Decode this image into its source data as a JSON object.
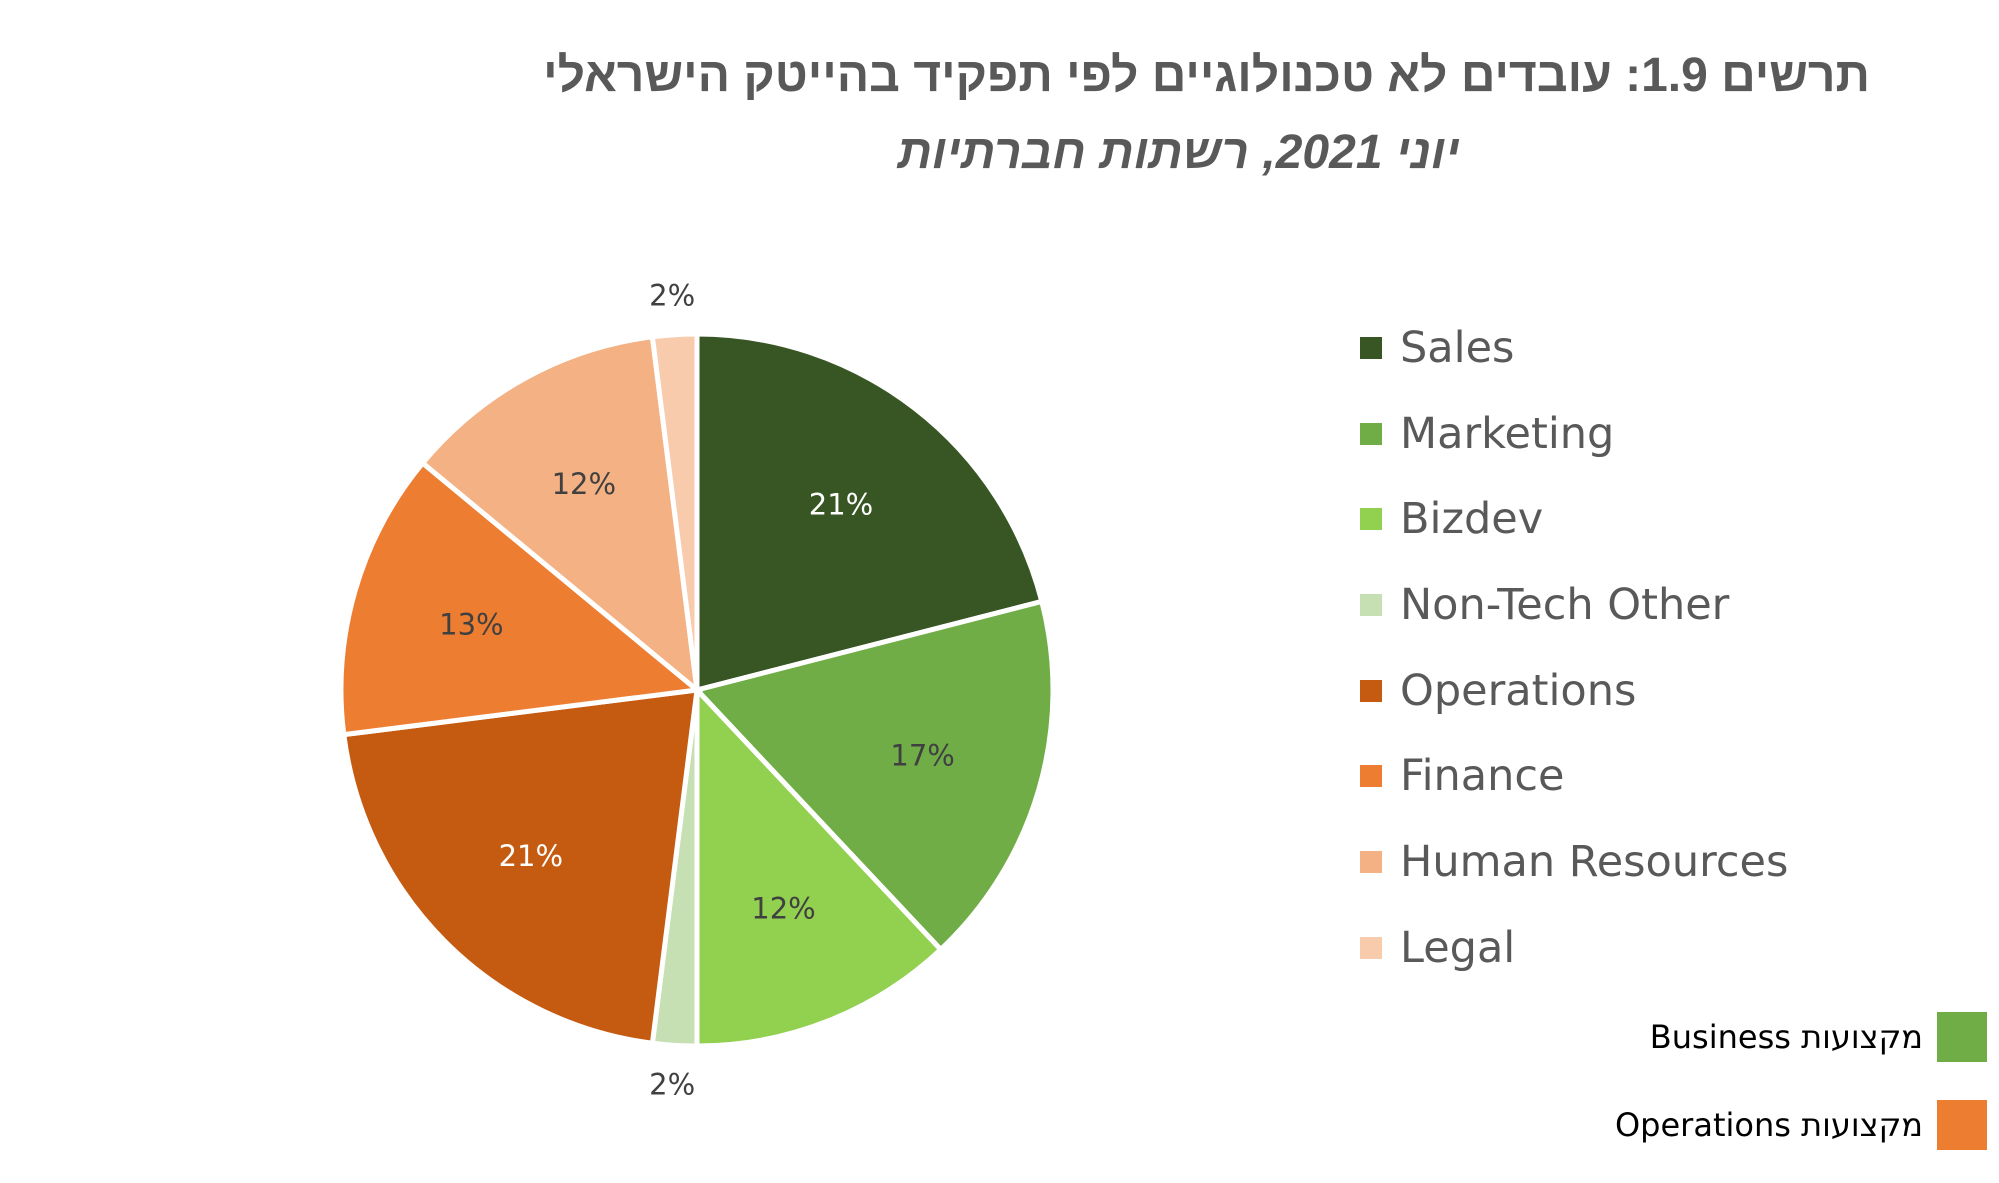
{
  "chart_data": {
    "type": "pie",
    "title": "תרשים 1.9: עובדים לא טכנולוגיים לפי תפקיד בהייטק הישראלי",
    "subtitle": "יוני 2021, רשתות חברתיות",
    "categories": [
      "Sales",
      "Marketing",
      "Bizdev",
      "Non-Tech Other",
      "Operations",
      "Finance",
      "Human Resources",
      "Legal"
    ],
    "values": [
      21,
      17,
      12,
      2,
      21,
      13,
      12,
      2
    ],
    "value_labels": [
      "21%",
      "17%",
      "12%",
      "2%",
      "21%",
      "13%",
      "12%",
      "2%"
    ],
    "colors": [
      "#375623",
      "#70AD47",
      "#92D050",
      "#C6E0B4",
      "#C55A11",
      "#ED7D31",
      "#F4B183",
      "#F8CBAD"
    ],
    "label_colors": [
      "#ffffff",
      "#404040",
      "#404040",
      "#404040",
      "#ffffff",
      "#404040",
      "#404040",
      "#404040"
    ],
    "legend_position": "right",
    "group_legend": [
      {
        "label": "מקצועות Business",
        "color": "#70AD47"
      },
      {
        "label": "מקצועות Operations",
        "color": "#ED7D31"
      }
    ]
  }
}
